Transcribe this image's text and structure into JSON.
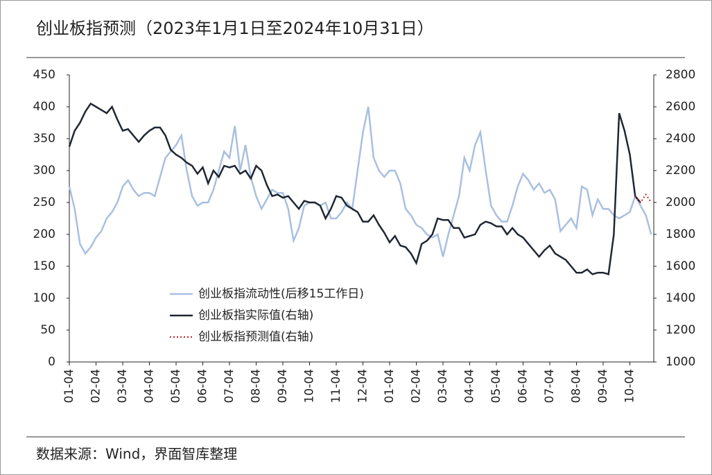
{
  "chart_data": {
    "type": "line",
    "title": "创业板指预测（2023年1月1日至2024年10月31日）",
    "source": "数据来源：Wind，界面智库整理",
    "categories": [
      "01-04",
      null,
      null,
      null,
      null,
      "02-04",
      null,
      null,
      null,
      null,
      "03-04",
      null,
      null,
      null,
      null,
      "04-04",
      null,
      null,
      null,
      null,
      "05-04",
      null,
      null,
      null,
      null,
      "06-04",
      null,
      null,
      null,
      null,
      "07-04",
      null,
      null,
      null,
      null,
      "08-04",
      null,
      null,
      null,
      null,
      "09-04",
      null,
      null,
      null,
      null,
      "10-04",
      null,
      null,
      null,
      null,
      "11-04",
      null,
      null,
      null,
      null,
      "12-04",
      null,
      null,
      null,
      null,
      "01-04",
      null,
      null,
      null,
      null,
      "02-04",
      null,
      null,
      null,
      null,
      "03-04",
      null,
      null,
      null,
      null,
      "04-04",
      null,
      null,
      null,
      null,
      "05-04",
      null,
      null,
      null,
      null,
      "06-04",
      null,
      null,
      null,
      null,
      "07-04",
      null,
      null,
      null,
      null,
      "08-04",
      null,
      null,
      null,
      null,
      "09-04",
      null,
      null,
      null,
      null,
      "10-04",
      null,
      null,
      null,
      null
    ],
    "series": [
      {
        "name": "创业板指流动性(后移15工作日)",
        "color": "#a9bfe0",
        "axis": "y",
        "dash": false,
        "values": [
          275,
          240,
          185,
          170,
          180,
          195,
          205,
          225,
          235,
          250,
          275,
          285,
          270,
          260,
          265,
          265,
          260,
          290,
          320,
          330,
          340,
          355,
          300,
          260,
          245,
          250,
          250,
          270,
          300,
          330,
          320,
          370,
          300,
          340,
          290,
          260,
          240,
          255,
          270,
          265,
          265,
          240,
          190,
          210,
          245,
          250,
          250,
          245,
          250,
          225,
          225,
          235,
          250,
          240,
          300,
          360,
          400,
          320,
          300,
          290,
          300,
          300,
          280,
          240,
          230,
          215,
          210,
          200,
          195,
          200,
          165,
          200,
          230,
          260,
          320,
          300,
          340,
          360,
          300,
          245,
          230,
          220,
          220,
          245,
          275,
          295,
          285,
          270,
          280,
          265,
          270,
          255,
          205,
          215,
          225,
          210,
          275,
          270,
          230,
          255,
          240,
          240,
          230,
          225,
          230,
          235,
          260,
          245,
          230,
          200
        ]
      },
      {
        "name": "创业板指实际值(右轴)",
        "color": "#1f2633",
        "axis": "y2",
        "dash": false,
        "values": [
          2350,
          2450,
          2500,
          2570,
          2620,
          2600,
          2580,
          2560,
          2600,
          2520,
          2450,
          2460,
          2420,
          2380,
          2420,
          2450,
          2470,
          2470,
          2420,
          2330,
          2300,
          2280,
          2250,
          2230,
          2180,
          2220,
          2120,
          2200,
          2160,
          2230,
          2220,
          2230,
          2180,
          2200,
          2150,
          2230,
          2200,
          2110,
          2040,
          2050,
          2030,
          2040,
          2000,
          1960,
          2010,
          2000,
          2000,
          1980,
          1900,
          1960,
          2040,
          2030,
          1980,
          1960,
          1940,
          1880,
          1880,
          1920,
          1860,
          1810,
          1750,
          1790,
          1730,
          1720,
          1680,
          1620,
          1740,
          1760,
          1800,
          1900,
          1890,
          1890,
          1840,
          1840,
          1780,
          1790,
          1800,
          1860,
          1880,
          1870,
          1850,
          1850,
          1800,
          1840,
          1800,
          1780,
          1740,
          1700,
          1660,
          1700,
          1730,
          1680,
          1660,
          1640,
          1600,
          1560,
          1560,
          1580,
          1550,
          1560,
          1560,
          1550,
          1800,
          2560,
          2450,
          2300,
          2040,
          2000,
          null,
          null
        ]
      },
      {
        "name": "创业板指预测值(右轴)",
        "color": "#c0272d",
        "axis": "y2",
        "dash": true,
        "values": [
          null,
          null,
          null,
          null,
          null,
          null,
          null,
          null,
          null,
          null,
          null,
          null,
          null,
          null,
          null,
          null,
          null,
          null,
          null,
          null,
          null,
          null,
          null,
          null,
          null,
          null,
          null,
          null,
          null,
          null,
          null,
          null,
          null,
          null,
          null,
          null,
          null,
          null,
          null,
          null,
          null,
          null,
          null,
          null,
          null,
          null,
          null,
          null,
          null,
          null,
          null,
          null,
          null,
          null,
          null,
          null,
          null,
          null,
          null,
          null,
          null,
          null,
          null,
          null,
          null,
          null,
          null,
          null,
          null,
          null,
          null,
          null,
          null,
          null,
          null,
          null,
          null,
          null,
          null,
          null,
          null,
          null,
          null,
          null,
          null,
          null,
          null,
          null,
          null,
          null,
          null,
          null,
          null,
          null,
          null,
          null,
          null,
          null,
          null,
          null,
          null,
          null,
          null,
          null,
          null,
          null,
          2040,
          2000,
          2050,
          2000
        ]
      }
    ],
    "ylim": [
      0,
      450
    ],
    "yticks": [
      0,
      50,
      100,
      150,
      200,
      250,
      300,
      350,
      400,
      450
    ],
    "y2lim": [
      1000,
      2800
    ],
    "y2ticks": [
      1000,
      1200,
      1400,
      1600,
      1800,
      2000,
      2200,
      2400,
      2600,
      2800
    ]
  }
}
